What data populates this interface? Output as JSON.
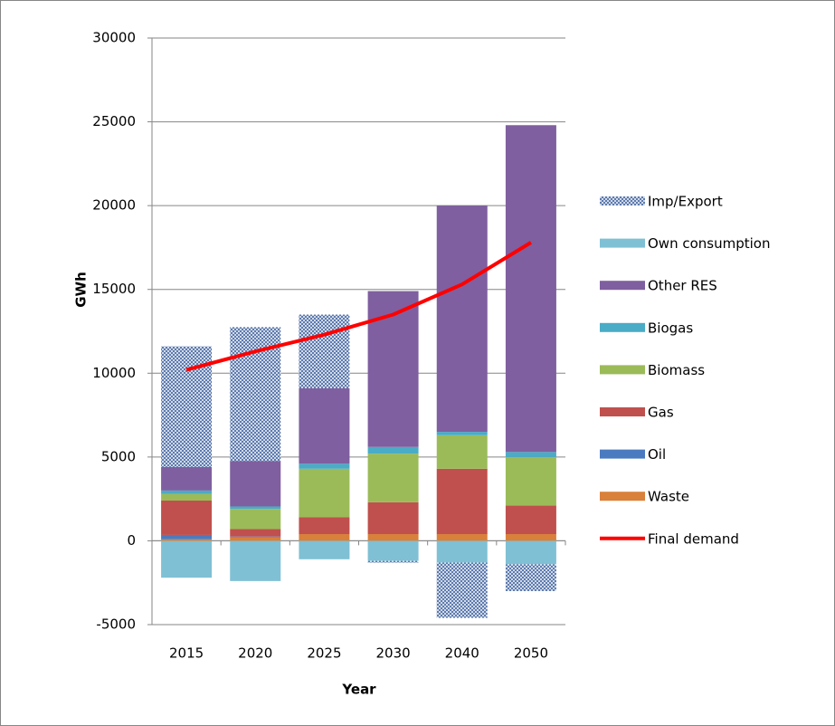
{
  "chart_data": {
    "type": "bar",
    "stacked": true,
    "x_label": "Year",
    "y_label": "GWh",
    "categories": [
      "2015",
      "2020",
      "2025",
      "2030",
      "2040",
      "2050"
    ],
    "ylim": [
      -5000,
      30000
    ],
    "yticks": [
      -5000,
      0,
      5000,
      10000,
      15000,
      20000,
      25000,
      30000
    ],
    "grid": true,
    "legend": "right",
    "series": [
      {
        "name": "Waste",
        "color": "#d9803a",
        "values": [
          100,
          200,
          400,
          400,
          400,
          400
        ]
      },
      {
        "name": "Oil",
        "color": "#4a7bc0",
        "values": [
          250,
          50,
          0,
          0,
          0,
          0
        ]
      },
      {
        "name": "Gas",
        "color": "#c0504d",
        "values": [
          2050,
          450,
          1000,
          1900,
          3900,
          1700
        ]
      },
      {
        "name": "Biomass",
        "color": "#9bbb59",
        "values": [
          400,
          1200,
          2900,
          2900,
          2000,
          2900
        ]
      },
      {
        "name": "Biogas",
        "color": "#4aacc6",
        "values": [
          200,
          150,
          300,
          400,
          200,
          300
        ]
      },
      {
        "name": "Other RES",
        "color": "#7f5f9f",
        "values": [
          1400,
          2700,
          4500,
          9300,
          13500,
          19500
        ]
      },
      {
        "name": "Own consumption",
        "color": "#7fc0d4",
        "values": [
          -2200,
          -2400,
          -1100,
          -1200,
          -1300,
          -1400
        ]
      },
      {
        "name": "Imp/Export",
        "color": "#4f6fa8",
        "pattern": "crosshatch",
        "values": [
          7200,
          8000,
          4400,
          -100,
          -3300,
          -1600
        ]
      },
      {
        "name": "Final demand",
        "type": "line",
        "color": "#ff0000",
        "values": [
          10200,
          11300,
          12300,
          13500,
          15300,
          17800
        ]
      }
    ]
  }
}
